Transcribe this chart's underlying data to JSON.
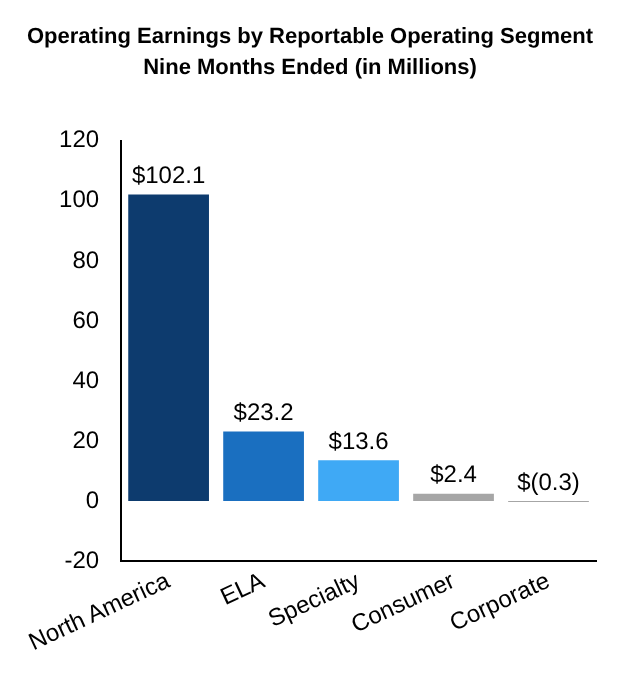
{
  "chart_data": {
    "type": "bar",
    "title": "Operating Earnings by Reportable Operating Segment",
    "subtitle": "Nine Months Ended (in Millions)",
    "categories": [
      "North America",
      "ELA",
      "Specialty",
      "Consumer",
      "Corporate"
    ],
    "values": [
      102.1,
      23.2,
      13.6,
      2.4,
      -0.3
    ],
    "colors": [
      "#0d3b6e",
      "#1a6fc0",
      "#3fa9f5",
      "#a6a6a6",
      "#a6a6a6"
    ],
    "value_labels": [
      "$102.1",
      "$23.2",
      "$13.6",
      "$2.4",
      "$(0.3)"
    ],
    "ylim": [
      -20,
      120
    ],
    "yticks": [
      -20,
      0,
      20,
      40,
      60,
      80,
      100,
      120
    ],
    "grid": false,
    "legend": false
  }
}
